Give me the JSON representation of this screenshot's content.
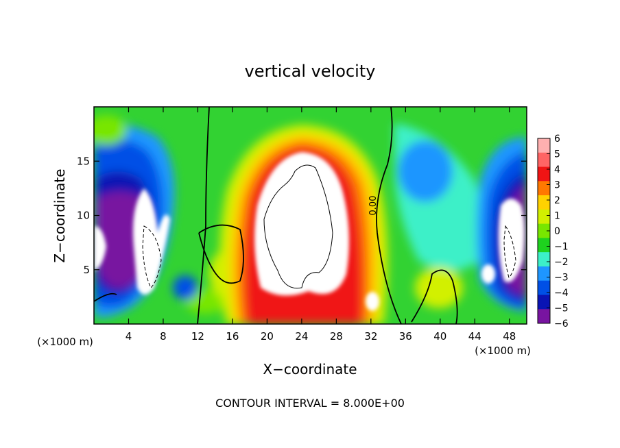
{
  "chart_data": {
    "type": "heatmap",
    "title": "vertical velocity",
    "xlabel": "X−coordinate",
    "ylabel": "Z−coordinate",
    "x_unit_left": "(×1000 m)",
    "x_unit_right": "(×1000 m)",
    "xlim": [
      0,
      50
    ],
    "ylim": [
      0,
      20
    ],
    "x_ticks": [
      "4",
      "8",
      "12",
      "16",
      "20",
      "24",
      "28",
      "32",
      "36",
      "40",
      "44",
      "48"
    ],
    "x_tick_values": [
      4,
      8,
      12,
      16,
      20,
      24,
      28,
      32,
      36,
      40,
      44,
      48
    ],
    "y_ticks": [
      "5",
      "10",
      "15"
    ],
    "y_tick_values": [
      5,
      10,
      15
    ],
    "colorbar": {
      "labels": [
        "6",
        "5",
        "4",
        "3",
        "2",
        "1",
        "0",
        "−1",
        "−2",
        "−3",
        "−4",
        "−5",
        "−6"
      ],
      "values": [
        6,
        5,
        4,
        3,
        2,
        1,
        0,
        -1,
        -2,
        -3,
        -4,
        -5,
        -6
      ],
      "colors": [
        "#ffb0b0",
        "#ff6464",
        "#f01414",
        "#ff7800",
        "#ffd200",
        "#d2f000",
        "#78e600",
        "#1ed21e",
        "#3cf0c8",
        "#1e96ff",
        "#0050e6",
        "#0a14b4",
        "#7814a0"
      ]
    },
    "contour_label": "0.00",
    "footer": "CONTOUR INTERVAL = 8.000E+00",
    "features": [
      {
        "kind": "updraft",
        "x": 25,
        "z": 10,
        "peak": ">6"
      },
      {
        "kind": "downdraft",
        "x": 6,
        "z": 8,
        "peak": "<-6"
      },
      {
        "kind": "downdraft",
        "x": 47.5,
        "z": 7.5,
        "peak": "<-6"
      }
    ]
  }
}
